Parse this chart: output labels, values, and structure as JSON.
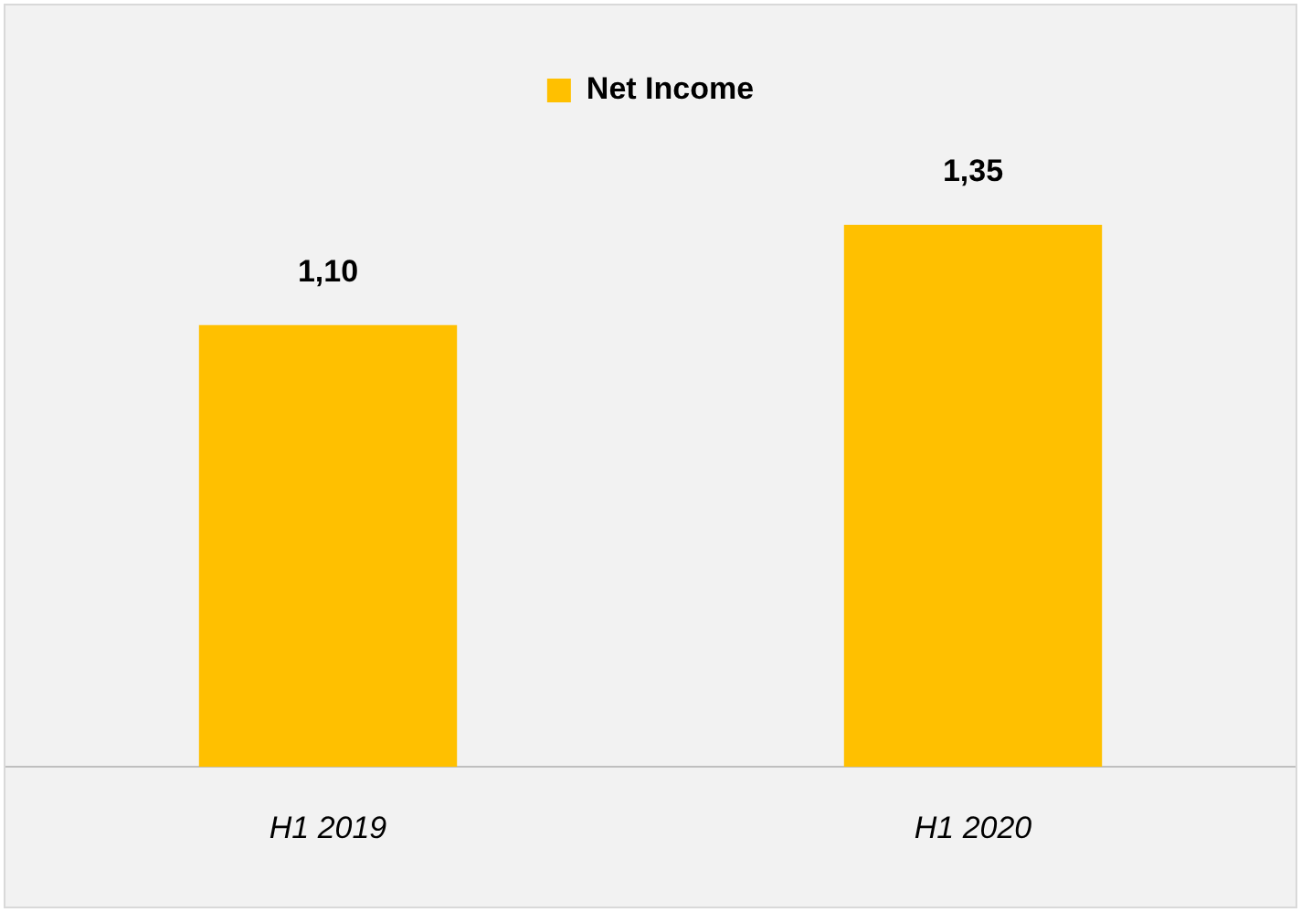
{
  "chart_data": {
    "type": "bar",
    "categories": [
      "H1 2019",
      "H1 2020"
    ],
    "series": [
      {
        "name": "Net Income",
        "color": "#ffc000",
        "values": [
          1.1,
          1.35
        ],
        "value_labels": [
          "1,10",
          "1,35"
        ]
      }
    ],
    "legend": "top",
    "grid": false,
    "tick_labels": "x"
  }
}
